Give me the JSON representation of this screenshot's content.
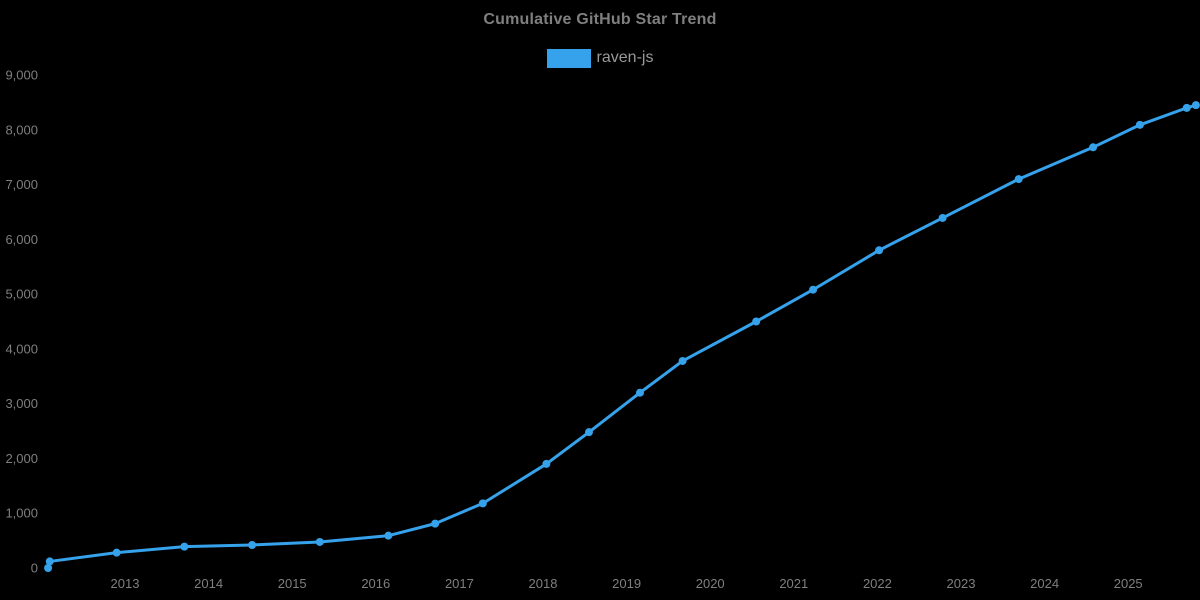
{
  "title": "Cumulative GitHub Star Trend",
  "legend": {
    "label": "raven-js",
    "swatch_color": "#36A2EB"
  },
  "colors": {
    "background": "#000000",
    "title_text": "#7f7f7f",
    "legend_text": "#999999",
    "axis_text": "#7f7f7f",
    "line": "#36A2EB"
  },
  "chart_data": {
    "type": "line",
    "title": "Cumulative GitHub Star Trend",
    "legend_entries": [
      "raven-js"
    ],
    "legend_position": "top",
    "grid": false,
    "marker": "circle",
    "xlabel": "",
    "ylabel": "",
    "xlim": [
      2012.0,
      2025.9
    ],
    "ylim": [
      0,
      9000
    ],
    "x_tick_years": [
      2013,
      2014,
      2015,
      2016,
      2017,
      2018,
      2019,
      2020,
      2021,
      2022,
      2023,
      2024,
      2025
    ],
    "y_ticks": [
      {
        "value": 0,
        "label": "0"
      },
      {
        "value": 1000,
        "label": "1,000"
      },
      {
        "value": 2000,
        "label": "2,000"
      },
      {
        "value": 3000,
        "label": "3,000"
      },
      {
        "value": 4000,
        "label": "4,000"
      },
      {
        "value": 5000,
        "label": "5,000"
      },
      {
        "value": 6000,
        "label": "6,000"
      },
      {
        "value": 7000,
        "label": "7,000"
      },
      {
        "value": 8000,
        "label": "8,000"
      },
      {
        "value": 9000,
        "label": "9,000"
      }
    ],
    "series": [
      {
        "name": "raven-js",
        "color": "#36A2EB",
        "x_years": [
          2012.08,
          2012.1,
          2012.9,
          2013.71,
          2014.52,
          2015.33,
          2016.15,
          2016.71,
          2017.28,
          2018.04,
          2018.55,
          2019.16,
          2019.67,
          2020.55,
          2021.23,
          2022.02,
          2022.78,
          2023.69,
          2024.58,
          2025.14,
          2025.7,
          2025.81
        ],
        "values": [
          0,
          120,
          280,
          390,
          420,
          475,
          590,
          810,
          1180,
          1900,
          2480,
          3200,
          3780,
          4500,
          5080,
          5800,
          6390,
          7100,
          7680,
          8090,
          8400,
          8450
        ]
      }
    ]
  }
}
